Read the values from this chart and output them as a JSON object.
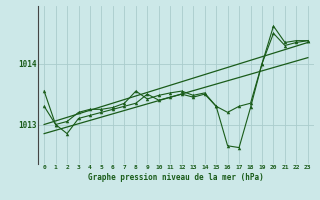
{
  "xlabel": "Graphe pression niveau de la mer (hPa)",
  "background_color": "#cce8e8",
  "grid_color": "#aacccc",
  "line_color": "#1a5c1a",
  "x_values": [
    0,
    1,
    2,
    3,
    4,
    5,
    6,
    7,
    8,
    9,
    10,
    11,
    12,
    13,
    14,
    15,
    16,
    17,
    18,
    19,
    20,
    21,
    22,
    23
  ],
  "series1": [
    1013.3,
    1013.0,
    1012.85,
    1013.1,
    1013.15,
    1013.2,
    1013.25,
    1013.3,
    1013.35,
    1013.5,
    1013.4,
    1013.45,
    1013.5,
    1013.45,
    1013.5,
    1013.3,
    1013.2,
    1013.3,
    1013.35,
    1014.0,
    1014.5,
    1014.3,
    1014.35,
    1014.38
  ],
  "series2": [
    1013.55,
    1013.0,
    1013.05,
    1013.2,
    1013.25,
    1013.25,
    1013.28,
    1013.35,
    1013.55,
    1013.42,
    1013.48,
    1013.52,
    1013.55,
    1013.48,
    1013.52,
    1013.3,
    1012.65,
    1012.62,
    1013.28,
    1014.0,
    1014.62,
    1014.35,
    1014.38,
    1014.38
  ],
  "trend1_x": [
    0,
    23
  ],
  "trend1_y": [
    1013.0,
    1014.35
  ],
  "trend2_x": [
    0,
    23
  ],
  "trend2_y": [
    1012.85,
    1014.1
  ],
  "ylim_min": 1012.35,
  "ylim_max": 1014.95,
  "yticks": [
    1013,
    1014
  ],
  "xticks": [
    0,
    1,
    2,
    3,
    4,
    5,
    6,
    7,
    8,
    9,
    10,
    11,
    12,
    13,
    14,
    15,
    16,
    17,
    18,
    19,
    20,
    21,
    22,
    23
  ]
}
